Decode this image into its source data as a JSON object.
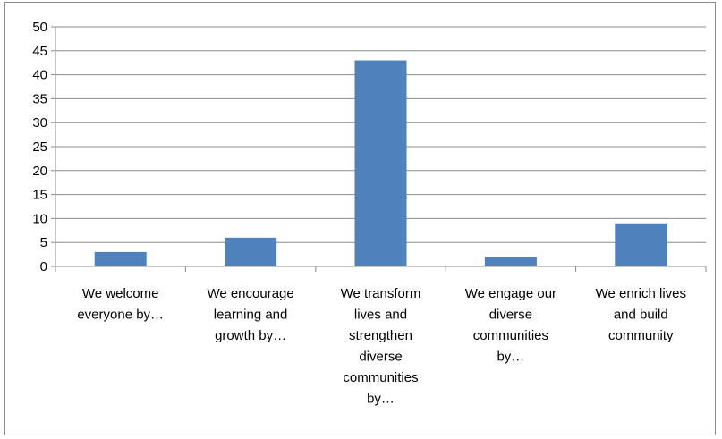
{
  "chart_data": {
    "type": "bar",
    "categories": [
      "We welcome everyone by…",
      "We encourage learning and growth by…",
      "We transform lives and strengthen diverse communities by…",
      "We engage our diverse communities by…",
      "We enrich lives and build community"
    ],
    "category_label_lines": [
      [
        "We welcome",
        "everyone by…"
      ],
      [
        "We encourage",
        "learning and",
        "growth by…"
      ],
      [
        "We transform",
        "lives and",
        "strengthen",
        "diverse",
        "communities",
        "by…"
      ],
      [
        "We engage our",
        "diverse",
        "communities",
        "by…"
      ],
      [
        "We enrich lives",
        "and build",
        "community"
      ]
    ],
    "values": [
      3,
      6,
      43,
      2,
      9
    ],
    "ylim": [
      0,
      50
    ],
    "yticks": [
      0,
      5,
      10,
      15,
      20,
      25,
      30,
      35,
      40,
      45,
      50
    ],
    "grid": true,
    "legend": "none",
    "bar_color": "#4f81bd",
    "grid_color": "#8c8c8c"
  }
}
